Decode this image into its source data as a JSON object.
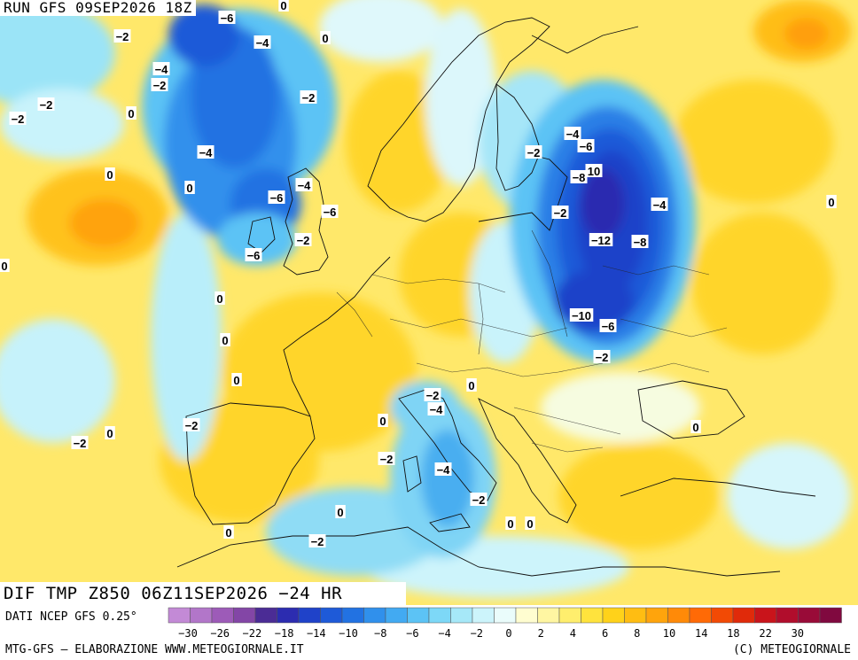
{
  "run_title": "RUN GFS 09SEP2026 18Z",
  "map_title": "DIF TMP Z850 06Z11SEP2026 −24 HR",
  "source": "DATI NCEP GFS 0.25°",
  "credit_left": "MTG-GFS — ELABORAZIONE WWW.METEOGIORNALE.IT",
  "credit_right": "(C) METEOGIORNALE",
  "legend": {
    "ticks": [
      "−30",
      "−26",
      "−22",
      "−18",
      "−14",
      "−10",
      "−8",
      "−6",
      "−4",
      "−2",
      "0",
      "2",
      "4",
      "6",
      "8",
      "10",
      "14",
      "18",
      "22",
      "30"
    ],
    "colors": [
      "#c38ad6",
      "#b276c9",
      "#9d5bb8",
      "#8346a6",
      "#4b2c95",
      "#2c2cb0",
      "#1f42c9",
      "#1e5ad8",
      "#2272e2",
      "#3090ec",
      "#42aaf2",
      "#5cc3f5",
      "#7dd8f7",
      "#a6e8f8",
      "#ccf4fb",
      "#eafcfb",
      "#fffdd0",
      "#fff6a2",
      "#ffee6d",
      "#ffe33d",
      "#ffd21a",
      "#ffbd12",
      "#ffa40c",
      "#ff8a08",
      "#ff6a06",
      "#f24a05",
      "#e02a0a",
      "#c9141b",
      "#b10d2c",
      "#990b38",
      "#80093f"
    ]
  },
  "contour_labels": [
    "-6",
    "0",
    "-4",
    "-2",
    "0",
    "-4",
    "-2",
    "-2",
    "0",
    "-2",
    "-2",
    "-4",
    "0",
    "-6",
    "-4",
    "0",
    "-6",
    "-2",
    "-6",
    "0",
    "0",
    "0",
    "0",
    "-2",
    "-2",
    "-4",
    "0",
    "-2",
    "0",
    "-4",
    "-2",
    "0",
    "0",
    "-2",
    "0",
    "0",
    "-4",
    "-6",
    "-2",
    "-8",
    "10",
    "-2",
    "-4",
    "-12",
    "-8",
    "-10",
    "-6",
    "-2",
    "0",
    "-2",
    "0",
    "0"
  ]
}
